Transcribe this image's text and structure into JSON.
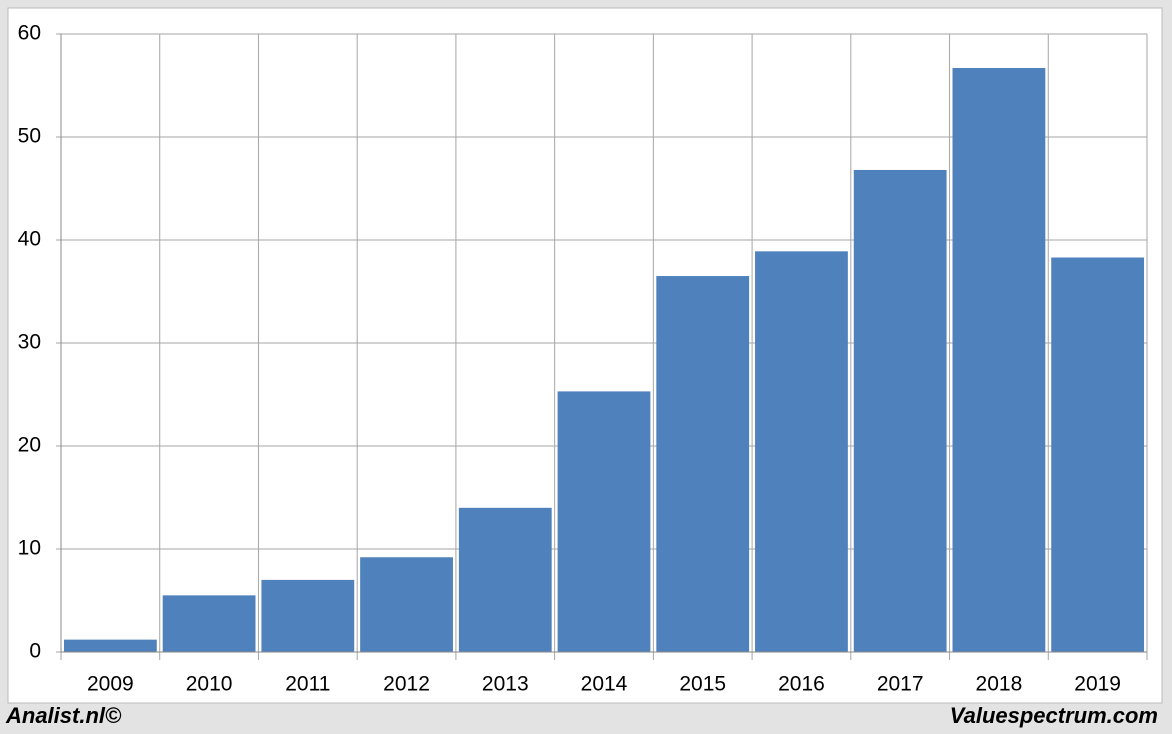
{
  "chart_data": {
    "type": "bar",
    "categories": [
      "2009",
      "2010",
      "2011",
      "2012",
      "2013",
      "2014",
      "2015",
      "2016",
      "2017",
      "2018",
      "2019"
    ],
    "values": [
      1.2,
      5.5,
      7.0,
      9.2,
      14.0,
      25.3,
      36.5,
      38.9,
      46.8,
      56.7,
      38.3
    ],
    "color": "#4f81bd",
    "ylim": [
      0,
      60
    ],
    "yticks": [
      0,
      10,
      20,
      30,
      40,
      50,
      60
    ],
    "grid": true,
    "footer_left": "Analist.nl©",
    "footer_right": "Valuespectrum.com"
  }
}
